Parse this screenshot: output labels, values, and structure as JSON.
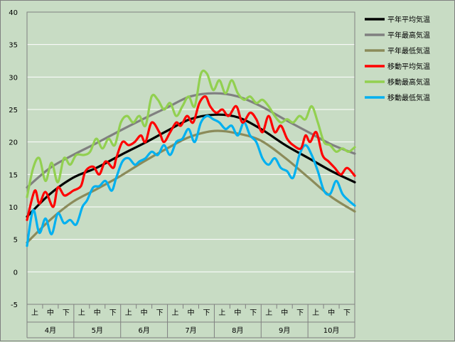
{
  "chart_data": {
    "type": "line",
    "ylim": [
      -5,
      40
    ],
    "ytick_step": 5,
    "grid": true,
    "legend_position": "right",
    "x_units": "day index from Apr 1 (0-213)",
    "months": [
      {
        "label": "4月",
        "thirds": [
          "上",
          "中",
          "下"
        ]
      },
      {
        "label": "5月",
        "thirds": [
          "上",
          "中",
          "下"
        ]
      },
      {
        "label": "6月",
        "thirds": [
          "上",
          "中",
          "下"
        ]
      },
      {
        "label": "7月",
        "thirds": [
          "上",
          "中",
          "下"
        ]
      },
      {
        "label": "8月",
        "thirds": [
          "上",
          "中",
          "下"
        ]
      },
      {
        "label": "9月",
        "thirds": [
          "上",
          "中",
          "下"
        ]
      },
      {
        "label": "10月",
        "thirds": [
          "上",
          "中",
          "下"
        ]
      }
    ],
    "series": [
      {
        "name": "平年平均気温",
        "color": "#000000",
        "x": [
          0,
          15,
          30,
          45,
          61,
          76,
          91,
          106,
          122,
          137,
          152,
          168,
          183,
          198,
          213
        ],
        "values": [
          8.5,
          12.0,
          14.5,
          16.0,
          18.0,
          19.8,
          21.7,
          23.5,
          24.2,
          23.8,
          22.0,
          19.5,
          17.5,
          15.5,
          13.8
        ]
      },
      {
        "name": "平年最高気温",
        "color": "#808080",
        "x": [
          0,
          15,
          30,
          45,
          61,
          76,
          91,
          106,
          122,
          137,
          152,
          168,
          183,
          198,
          213
        ],
        "values": [
          13.0,
          16.0,
          18.0,
          19.8,
          21.8,
          23.6,
          25.3,
          27.0,
          27.5,
          27.0,
          25.5,
          23.4,
          21.5,
          19.6,
          18.2
        ]
      },
      {
        "name": "平年最低気温",
        "color": "#8b8b5a",
        "x": [
          0,
          15,
          30,
          45,
          61,
          76,
          91,
          106,
          122,
          137,
          152,
          168,
          183,
          198,
          213
        ],
        "values": [
          4.5,
          8.0,
          10.8,
          12.7,
          14.8,
          17.0,
          19.0,
          20.8,
          21.7,
          21.3,
          20.2,
          17.5,
          14.5,
          11.5,
          9.3
        ]
      },
      {
        "name": "移動平均気温",
        "color": "#ff0000",
        "x": [
          0,
          5,
          8,
          12,
          17,
          20,
          24,
          27,
          30,
          35,
          38,
          43,
          47,
          51,
          56,
          58,
          62,
          66,
          70,
          74,
          77,
          81,
          86,
          89,
          93,
          97,
          100,
          104,
          108,
          112,
          116,
          119,
          123,
          127,
          131,
          136,
          140,
          145,
          149,
          153,
          157,
          161,
          165,
          169,
          173,
          178,
          181,
          184,
          188,
          192,
          196,
          200,
          204,
          208,
          213
        ],
        "values": [
          8.0,
          12.5,
          10.5,
          12.3,
          10.0,
          13.0,
          11.8,
          12.0,
          12.5,
          13.2,
          15.5,
          16.2,
          15.0,
          17.0,
          16.0,
          17.5,
          20.0,
          19.5,
          20.0,
          21.0,
          20.0,
          23.0,
          21.5,
          20.0,
          21.5,
          23.0,
          22.5,
          24.0,
          23.0,
          26.0,
          27.0,
          25.5,
          24.5,
          25.0,
          24.0,
          25.5,
          23.0,
          24.5,
          23.5,
          21.5,
          24.0,
          21.5,
          22.5,
          20.5,
          19.5,
          19.0,
          21.0,
          20.0,
          21.5,
          18.0,
          17.0,
          16.0,
          15.0,
          16.0,
          14.8
        ]
      },
      {
        "name": "移動最高気温",
        "color": "#92d050",
        "x": [
          0,
          4,
          8,
          12,
          16,
          20,
          24,
          28,
          32,
          37,
          41,
          45,
          49,
          53,
          57,
          61,
          65,
          69,
          73,
          77,
          81,
          85,
          89,
          93,
          97,
          101,
          105,
          109,
          113,
          117,
          121,
          125,
          129,
          133,
          137,
          141,
          145,
          149,
          153,
          157,
          161,
          165,
          169,
          173,
          177,
          181,
          185,
          189,
          193,
          197,
          201,
          205,
          209,
          213
        ],
        "values": [
          11.5,
          16.0,
          17.5,
          14.0,
          16.8,
          13.8,
          17.5,
          16.5,
          18.0,
          18.0,
          18.5,
          20.5,
          19.0,
          20.5,
          19.5,
          23.0,
          24.0,
          23.0,
          24.0,
          22.5,
          27.0,
          26.5,
          25.0,
          26.0,
          24.0,
          25.5,
          27.0,
          25.5,
          30.5,
          30.5,
          28.0,
          29.5,
          27.5,
          29.5,
          27.5,
          26.5,
          27.0,
          26.0,
          26.5,
          25.5,
          24.0,
          23.0,
          23.5,
          23.0,
          24.0,
          23.5,
          25.5,
          23.0,
          20.0,
          19.5,
          18.5,
          19.0,
          18.5,
          19.2
        ]
      },
      {
        "name": "移動最低気温",
        "color": "#00b0f0",
        "x": [
          0,
          4,
          8,
          12,
          16,
          20,
          24,
          28,
          32,
          36,
          39,
          43,
          47,
          51,
          55,
          58,
          62,
          66,
          70,
          73,
          77,
          81,
          85,
          89,
          93,
          97,
          101,
          105,
          109,
          113,
          117,
          121,
          125,
          129,
          133,
          137,
          141,
          145,
          149,
          153,
          157,
          161,
          165,
          169,
          173,
          177,
          181,
          185,
          189,
          193,
          197,
          201,
          205,
          209,
          213
        ],
        "values": [
          4.0,
          9.5,
          6.0,
          8.2,
          5.8,
          9.0,
          7.5,
          8.0,
          7.3,
          10.0,
          11.0,
          13.0,
          13.2,
          14.0,
          12.5,
          14.5,
          17.0,
          17.5,
          16.5,
          17.0,
          17.5,
          18.5,
          18.0,
          19.5,
          18.0,
          20.0,
          20.5,
          22.0,
          20.0,
          23.0,
          24.0,
          23.5,
          23.0,
          22.0,
          22.5,
          21.0,
          23.0,
          21.0,
          20.0,
          17.5,
          16.5,
          17.5,
          16.0,
          15.5,
          14.5,
          18.0,
          19.5,
          18.0,
          15.5,
          12.5,
          12.0,
          14.0,
          12.0,
          11.0,
          10.2
        ]
      }
    ]
  }
}
